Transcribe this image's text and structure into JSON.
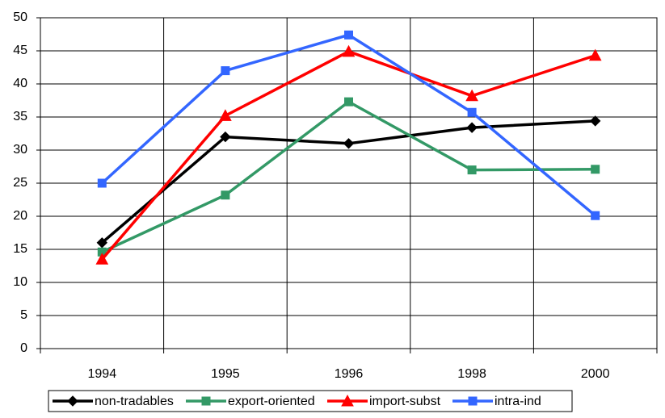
{
  "chart_data": {
    "type": "line",
    "categories": [
      "1994",
      "1995",
      "1996",
      "1998",
      "2000"
    ],
    "series": [
      {
        "name": "non-tradables",
        "color": "#000000",
        "marker": "diamond",
        "values": [
          16,
          32,
          31,
          33.4,
          34.4
        ]
      },
      {
        "name": "export-oriented",
        "color": "#339966",
        "marker": "square",
        "values": [
          14.6,
          23.2,
          37.3,
          27,
          27.1
        ]
      },
      {
        "name": "import-subst",
        "color": "#ff0000",
        "marker": "triangle",
        "values": [
          13.5,
          35.2,
          44.9,
          38.2,
          44.3
        ]
      },
      {
        "name": "intra-ind",
        "color": "#3366ff",
        "marker": "square",
        "values": [
          25,
          42,
          47.4,
          35.7,
          20.1
        ]
      }
    ],
    "ylim": [
      0,
      50
    ],
    "yticks": [
      0,
      5,
      10,
      15,
      20,
      25,
      30,
      35,
      40,
      45,
      50
    ],
    "grid": true,
    "legend": "bottom"
  }
}
